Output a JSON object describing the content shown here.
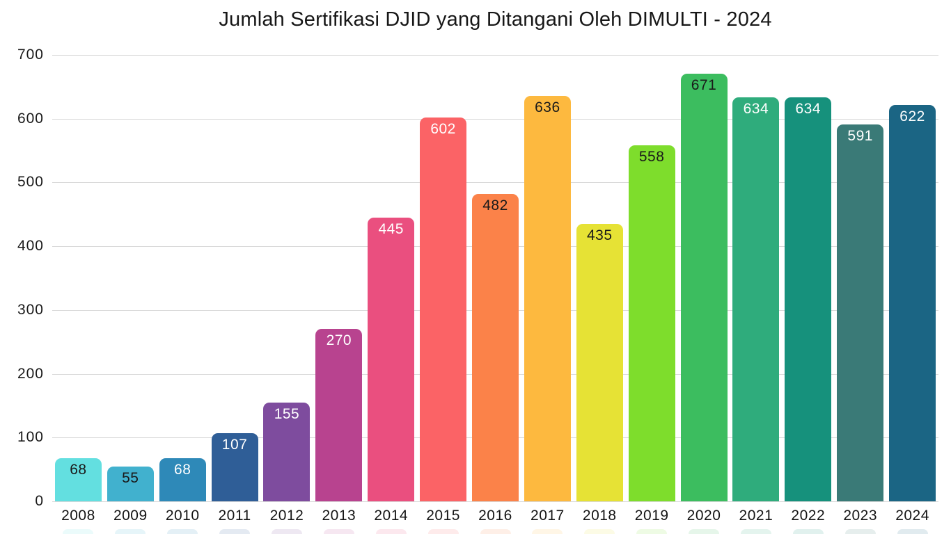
{
  "chart_data": {
    "type": "bar",
    "title": "Jumlah Sertifikasi DJID yang Ditangani Oleh DIMULTI - 2024",
    "categories": [
      "2008",
      "2009",
      "2010",
      "2011",
      "2012",
      "2013",
      "2014",
      "2015",
      "2016",
      "2017",
      "2018",
      "2019",
      "2020",
      "2021",
      "2022",
      "2023",
      "2024"
    ],
    "values": [
      68,
      55,
      68,
      107,
      155,
      270,
      445,
      602,
      482,
      636,
      435,
      558,
      671,
      634,
      634,
      591,
      622
    ],
    "bar_colors": [
      "#63DFE0",
      "#41B1CE",
      "#2E89B8",
      "#2F5E97",
      "#7E4C9E",
      "#B8438F",
      "#EA4F7F",
      "#FB6366",
      "#FB8249",
      "#FDB93F",
      "#E6E235",
      "#7EDD2C",
      "#3CBD5F",
      "#2FAC7C",
      "#16917C",
      "#3A7A77",
      "#1B6584"
    ],
    "value_label_colors": [
      "#1a1a1a",
      "#1a1a1a",
      "#ffffff",
      "#ffffff",
      "#ffffff",
      "#ffffff",
      "#ffffff",
      "#ffffff",
      "#1a1a1a",
      "#1a1a1a",
      "#1a1a1a",
      "#1a1a1a",
      "#1a1a1a",
      "#ffffff",
      "#ffffff",
      "#ffffff",
      "#ffffff"
    ],
    "yticks": [
      0,
      100,
      200,
      300,
      400,
      500,
      600,
      700
    ],
    "ylim": [
      0,
      700
    ],
    "xlabel": "",
    "ylabel": "",
    "grid": "horizontal",
    "legend": "none",
    "colors": {
      "background": "#ffffff",
      "gridline": "#d9d9d9",
      "text": "#1a1a1a"
    }
  }
}
